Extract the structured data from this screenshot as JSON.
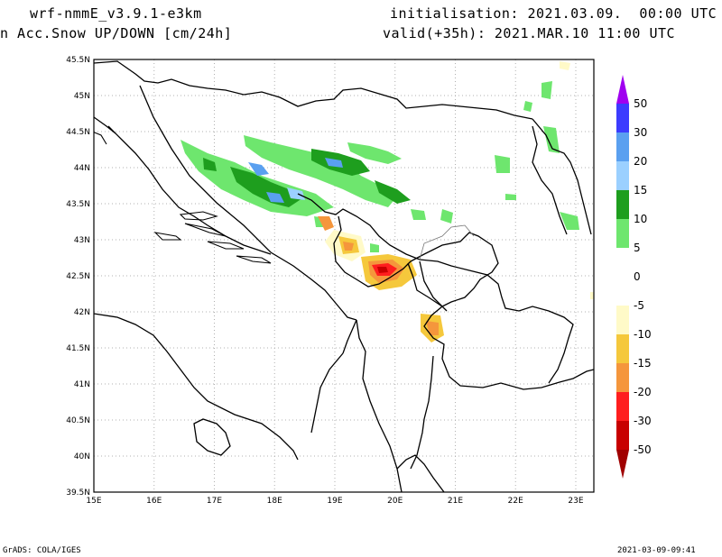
{
  "header": {
    "model": "wrf-nmmE_v3.9.1-e3km",
    "field": "n Acc.Snow UP/DOWN [cm/24h]",
    "init": "initialisation: 2021.03.09.  00:00 UTC",
    "valid": "valid(+35h): 2021.MAR.10 11:00 UTC"
  },
  "footer": {
    "credit": "GrADS: COLA/IGES",
    "stamp": "2021-03-09-09:41"
  },
  "map": {
    "lon_range": [
      15,
      23.3
    ],
    "lat_range": [
      39.5,
      45.5
    ],
    "lon_ticks": [
      "15E",
      "16E",
      "17E",
      "18E",
      "19E",
      "20E",
      "21E",
      "22E",
      "23E"
    ],
    "lat_ticks": [
      "39.5N",
      "40N",
      "40.5N",
      "41N",
      "41.5N",
      "42N",
      "42.5N",
      "43N",
      "43.5N",
      "44N",
      "44.5N",
      "45N",
      "45.5N"
    ]
  },
  "colorbar": {
    "labels": [
      "50",
      "30",
      "20",
      "15",
      "10",
      "5",
      "0",
      "-5",
      "-10",
      "-15",
      "-20",
      "-30",
      "-50"
    ],
    "colors": {
      "c_50_top": "#a000f0",
      "c_30_50": "#3c3cff",
      "c_20_30": "#5aa0f0",
      "c_15_20": "#9bd0ff",
      "c_10_15": "#1e9e1e",
      "c_5_10": "#6ee66e",
      "c_0_5": "#ffffff",
      "c_m5_0": "#ffffff",
      "c_m10_m5": "#fffac8",
      "c_m15_m10": "#f5c83c",
      "c_m20_m15": "#f5963c",
      "c_m30_m20": "#ff1e1e",
      "c_m50_m30": "#c80000",
      "c_bottom": "#a00000"
    }
  }
}
